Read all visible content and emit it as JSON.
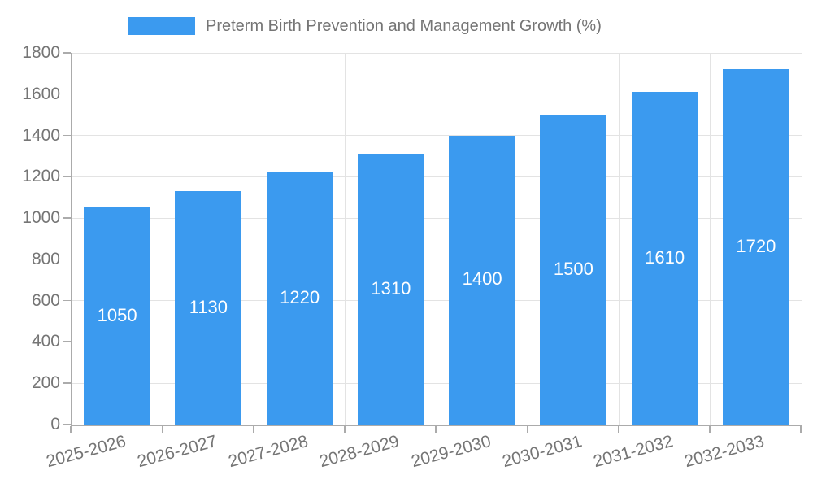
{
  "chart_data": {
    "type": "bar",
    "title": "Preterm Birth Prevention and Management Growth (%)",
    "legend": [
      "Preterm Birth Prevention and Management Growth (%)"
    ],
    "legend_position": "top",
    "categories": [
      "2025-2026",
      "2026-2027",
      "2027-2028",
      "2028-2029",
      "2029-2030",
      "2030-2031",
      "2031-2032",
      "2032-2033"
    ],
    "values": [
      1050,
      1130,
      1220,
      1310,
      1400,
      1500,
      1610,
      1720
    ],
    "data_labels": [
      "1050",
      "1130",
      "1220",
      "1310",
      "1400",
      "1500",
      "1610",
      "1720"
    ],
    "xlabel": "",
    "ylabel": "",
    "ylim": [
      0,
      1800
    ],
    "yticks": [
      0,
      200,
      400,
      600,
      800,
      1000,
      1200,
      1400,
      1600,
      1800
    ],
    "grid": true,
    "colors": {
      "bar": "#3b9aef",
      "bar_value_text": "#ffffff",
      "axis_text": "#757575",
      "gridline": "#e3e3e3",
      "spine": "#ababab"
    }
  }
}
